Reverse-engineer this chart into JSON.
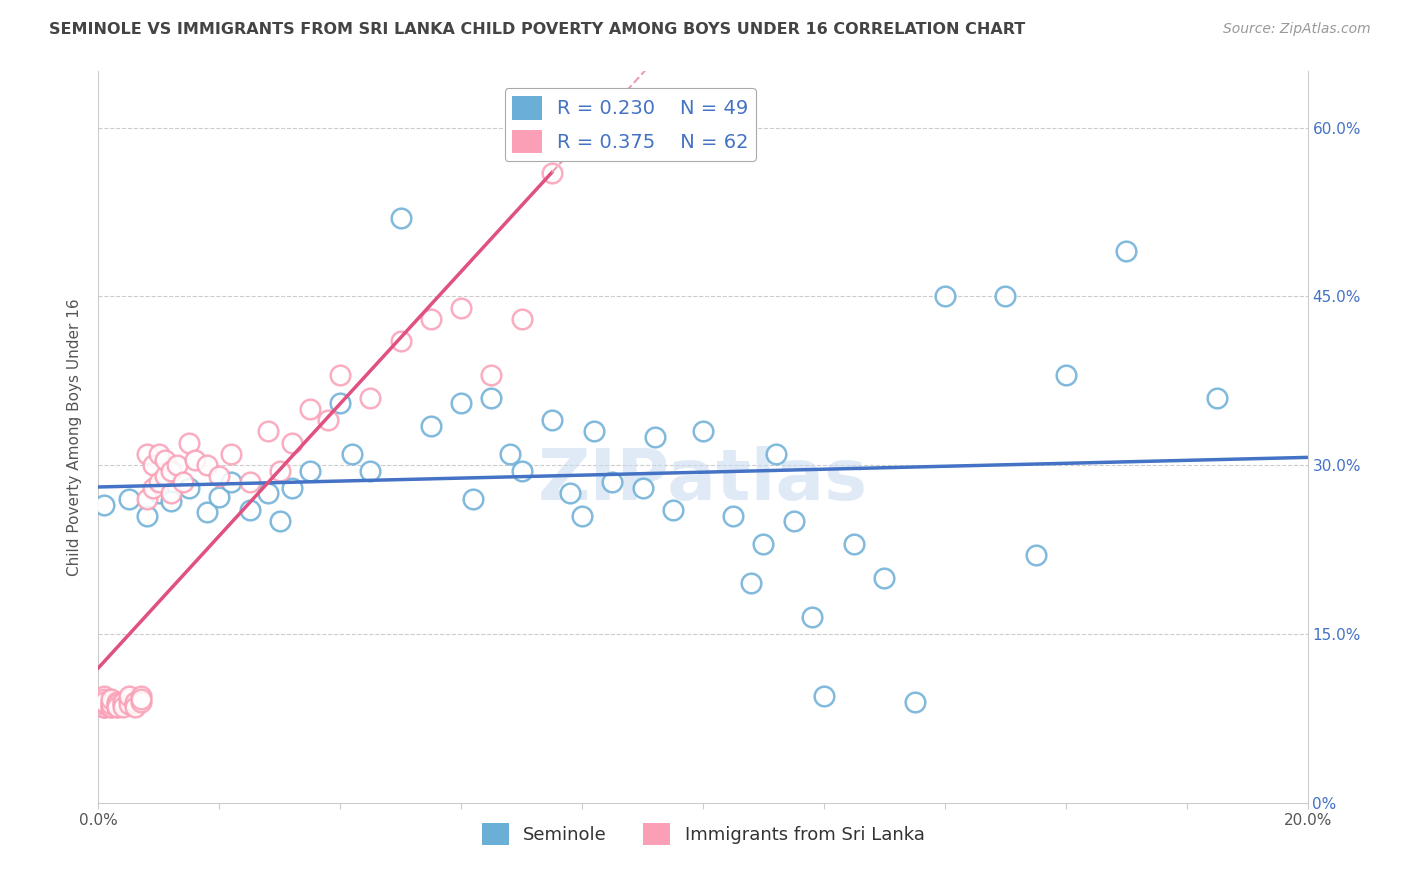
{
  "title": "SEMINOLE VS IMMIGRANTS FROM SRI LANKA CHILD POVERTY AMONG BOYS UNDER 16 CORRELATION CHART",
  "source": "Source: ZipAtlas.com",
  "ylabel": "Child Poverty Among Boys Under 16",
  "xlim": [
    0.0,
    0.2
  ],
  "ylim": [
    0.0,
    0.65
  ],
  "xticks": [
    0.0,
    0.02,
    0.04,
    0.06,
    0.08,
    0.1,
    0.12,
    0.14,
    0.16,
    0.18,
    0.2
  ],
  "yticks": [
    0.0,
    0.15,
    0.3,
    0.45,
    0.6
  ],
  "ytick_labels_right": [
    "0%",
    "15.0%",
    "30.0%",
    "45.0%",
    "60.0%"
  ],
  "xtick_labels": [
    "0.0%",
    "",
    "",
    "",
    "",
    "",
    "",
    "",
    "",
    "",
    "20.0%"
  ],
  "series1_name": "Seminole",
  "series1_color": "#6baed6",
  "series1_R": 0.23,
  "series1_N": 49,
  "series2_name": "Immigrants from Sri Lanka",
  "series2_color": "#fa9fb5",
  "series2_R": 0.375,
  "series2_N": 62,
  "watermark": "ZIPatlas",
  "background_color": "#ffffff",
  "grid_color": "#cccccc",
  "title_color": "#444444",
  "legend_text_color": "#4472c4",
  "blue_trend_color": "#4472c4",
  "pink_trend_solid_color": "#e05080",
  "pink_trend_dashed_color": "#e8a0b0",
  "series1_x": [
    0.001,
    0.005,
    0.008,
    0.01,
    0.012,
    0.015,
    0.018,
    0.02,
    0.022,
    0.025,
    0.028,
    0.03,
    0.032,
    0.035,
    0.04,
    0.042,
    0.045,
    0.05,
    0.055,
    0.06,
    0.062,
    0.065,
    0.068,
    0.07,
    0.075,
    0.078,
    0.08,
    0.082,
    0.085,
    0.09,
    0.092,
    0.095,
    0.1,
    0.105,
    0.108,
    0.11,
    0.112,
    0.115,
    0.118,
    0.12,
    0.125,
    0.13,
    0.135,
    0.14,
    0.15,
    0.155,
    0.16,
    0.17,
    0.185
  ],
  "series1_y": [
    0.265,
    0.27,
    0.255,
    0.275,
    0.268,
    0.28,
    0.258,
    0.272,
    0.285,
    0.26,
    0.275,
    0.25,
    0.28,
    0.295,
    0.355,
    0.31,
    0.295,
    0.52,
    0.335,
    0.355,
    0.27,
    0.36,
    0.31,
    0.295,
    0.34,
    0.275,
    0.255,
    0.33,
    0.285,
    0.28,
    0.325,
    0.26,
    0.33,
    0.255,
    0.195,
    0.23,
    0.31,
    0.25,
    0.165,
    0.095,
    0.23,
    0.2,
    0.09,
    0.45,
    0.45,
    0.22,
    0.38,
    0.49,
    0.36
  ],
  "series2_x": [
    0.001,
    0.001,
    0.001,
    0.001,
    0.001,
    0.001,
    0.001,
    0.001,
    0.001,
    0.001,
    0.002,
    0.002,
    0.002,
    0.002,
    0.002,
    0.003,
    0.003,
    0.003,
    0.003,
    0.004,
    0.004,
    0.004,
    0.005,
    0.005,
    0.005,
    0.006,
    0.006,
    0.006,
    0.007,
    0.007,
    0.007,
    0.008,
    0.008,
    0.009,
    0.009,
    0.01,
    0.01,
    0.011,
    0.011,
    0.012,
    0.012,
    0.013,
    0.014,
    0.015,
    0.016,
    0.018,
    0.02,
    0.022,
    0.025,
    0.028,
    0.03,
    0.032,
    0.035,
    0.038,
    0.04,
    0.045,
    0.05,
    0.055,
    0.06,
    0.065,
    0.07,
    0.075
  ],
  "series2_y": [
    0.085,
    0.09,
    0.095,
    0.085,
    0.09,
    0.088,
    0.092,
    0.085,
    0.088,
    0.09,
    0.085,
    0.09,
    0.085,
    0.088,
    0.092,
    0.085,
    0.09,
    0.088,
    0.085,
    0.088,
    0.09,
    0.085,
    0.092,
    0.088,
    0.095,
    0.088,
    0.09,
    0.085,
    0.095,
    0.09,
    0.092,
    0.27,
    0.31,
    0.28,
    0.3,
    0.285,
    0.31,
    0.29,
    0.305,
    0.275,
    0.295,
    0.3,
    0.285,
    0.32,
    0.305,
    0.3,
    0.29,
    0.31,
    0.285,
    0.33,
    0.295,
    0.32,
    0.35,
    0.34,
    0.38,
    0.36,
    0.41,
    0.43,
    0.44,
    0.38,
    0.43,
    0.56
  ]
}
